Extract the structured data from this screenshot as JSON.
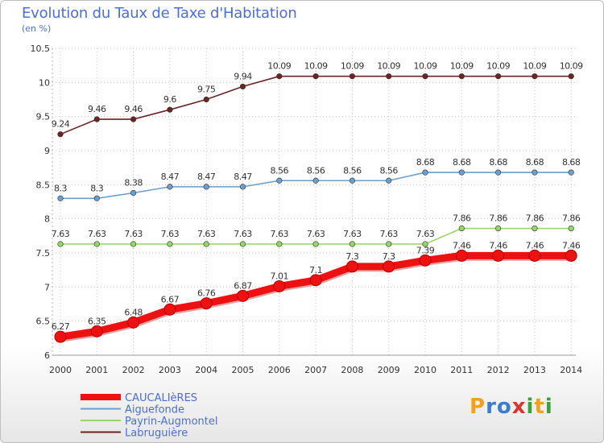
{
  "title": "Evolution du Taux de Taxe d'Habitation",
  "unit_label": "(en %)",
  "logo_text": "Proxiti",
  "chart_data": {
    "type": "line",
    "x": [
      "2000",
      "2001",
      "2002",
      "2003",
      "2004",
      "2005",
      "2006",
      "2007",
      "2008",
      "2009",
      "2010",
      "2011",
      "2012",
      "2013",
      "2014"
    ],
    "ylim": [
      6,
      10.5
    ],
    "yticks": [
      "6",
      "6.5",
      "7",
      "7.5",
      "8",
      "8.5",
      "9",
      "9.5",
      "10",
      "10.5"
    ],
    "grid": true,
    "legend_position": "bottom-left",
    "series": [
      {
        "name": "Labruguière",
        "color": "#6b2424",
        "values": [
          9.24,
          9.46,
          9.46,
          9.6,
          9.75,
          9.94,
          10.09,
          10.09,
          10.09,
          10.09,
          10.09,
          10.09,
          10.09,
          10.09,
          10.09
        ],
        "labels": [
          "9.24",
          "9.46",
          "9.46",
          "9.6",
          "9.75",
          "9.94",
          "10.09",
          "10.09",
          "10.09",
          "10.09",
          "10.09",
          "10.09",
          "10.09",
          "10.09",
          "10.09"
        ]
      },
      {
        "name": "Aiguefonde",
        "color": "#6a9fd0",
        "values": [
          8.3,
          8.3,
          8.38,
          8.47,
          8.47,
          8.47,
          8.56,
          8.56,
          8.56,
          8.56,
          8.68,
          8.68,
          8.68,
          8.68,
          8.68
        ],
        "labels": [
          "8.3",
          "8.3",
          "8.38",
          "8.47",
          "8.47",
          "8.47",
          "8.56",
          "8.56",
          "8.56",
          "8.56",
          "8.68",
          "8.68",
          "8.68",
          "8.68",
          "8.68"
        ]
      },
      {
        "name": "Payrin-Augmontel",
        "color": "#99d466",
        "values": [
          7.63,
          7.63,
          7.63,
          7.63,
          7.63,
          7.63,
          7.63,
          7.63,
          7.63,
          7.63,
          7.63,
          7.86,
          7.86,
          7.86,
          7.86
        ],
        "labels": [
          "7.63",
          "7.63",
          "7.63",
          "7.63",
          "7.63",
          "7.63",
          "7.63",
          "7.63",
          "7.63",
          "7.63",
          "7.63",
          "7.86",
          "7.86",
          "7.86",
          "7.86"
        ]
      },
      {
        "name": "CAUCALIèRES",
        "color": "#ee1111",
        "bold": true,
        "values": [
          6.27,
          6.35,
          6.48,
          6.67,
          6.76,
          6.87,
          7.01,
          7.1,
          7.3,
          7.3,
          7.39,
          7.46,
          7.46,
          7.46,
          7.46
        ],
        "labels": [
          "6.27",
          "6.35",
          "6.48",
          "6.67",
          "6.76",
          "6.87",
          "7.01",
          "7.1",
          "7.3",
          "7.3",
          "7.39",
          "7.46",
          "7.46",
          "7.46",
          "7.46"
        ]
      }
    ],
    "legend": [
      {
        "name": "CAUCALIèRES",
        "color": "#ee1111",
        "bold": true
      },
      {
        "name": "Aiguefonde",
        "color": "#6a9fd0"
      },
      {
        "name": "Payrin-Augmontel",
        "color": "#99d466"
      },
      {
        "name": "Labruguière",
        "color": "#6b2424"
      }
    ]
  }
}
